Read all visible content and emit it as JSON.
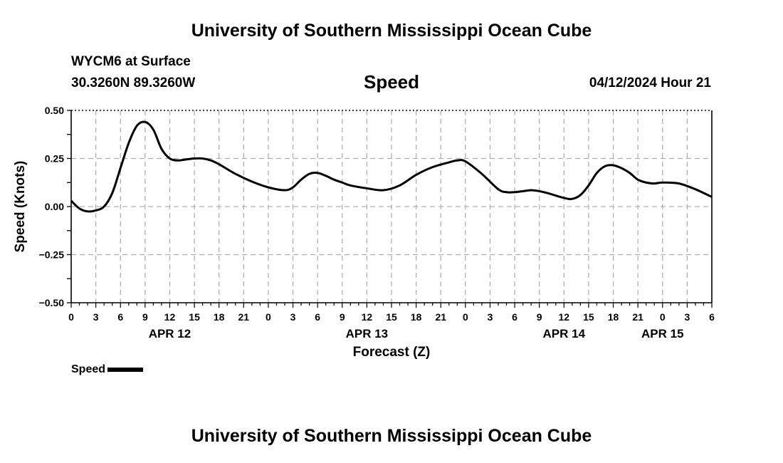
{
  "page": {
    "title_top": "University of Southern Mississippi Ocean Cube",
    "title_bottom": "University of Southern Mississippi Ocean Cube",
    "station": "WYCM6 at Surface",
    "coords": "30.3260N  89.3260W",
    "datetime": "04/12/2024 Hour 21"
  },
  "legend": {
    "label": "Speed",
    "color": "#000000"
  },
  "chart_data": {
    "type": "line",
    "title": "Speed",
    "xlabel": "Forecast (Z)",
    "ylabel": "Speed (Knots)",
    "xlim": [
      0,
      78
    ],
    "ylim": [
      -0.5,
      0.5
    ],
    "grid": true,
    "yticks": [
      "0.50",
      "0.25",
      "0.00",
      "−0.25",
      "−0.50"
    ],
    "ytick_values": [
      0.5,
      0.25,
      0.0,
      -0.25,
      -0.5
    ],
    "xtick_labels": [
      "0",
      "3",
      "6",
      "9",
      "12",
      "15",
      "18",
      "21",
      "0",
      "3",
      "6",
      "9",
      "12",
      "15",
      "18",
      "21",
      "0",
      "3",
      "6",
      "9",
      "12",
      "15",
      "18",
      "21",
      "0",
      "3",
      "6"
    ],
    "date_labels": [
      {
        "label": "APR 12",
        "hour": 12
      },
      {
        "label": "APR 13",
        "hour": 36
      },
      {
        "label": "APR 14",
        "hour": 60
      },
      {
        "label": "APR 15",
        "hour": 72
      }
    ],
    "series": [
      {
        "name": "Speed",
        "color": "#000000",
        "x": [
          0,
          1,
          2,
          3,
          4,
          5,
          6,
          7,
          8,
          9,
          10,
          11,
          12,
          13,
          14,
          15,
          16,
          17,
          18,
          20,
          22,
          24,
          26,
          27,
          28,
          29,
          30,
          31,
          32,
          33,
          34,
          36,
          38,
          40,
          42,
          44,
          46,
          47,
          48,
          50,
          52,
          53,
          54,
          55,
          56,
          57,
          58,
          60,
          61,
          62,
          63,
          64,
          65,
          66,
          67,
          68,
          69,
          70,
          71,
          72,
          74,
          76,
          78
        ],
        "values": [
          0.03,
          -0.01,
          -0.025,
          -0.02,
          0.0,
          0.07,
          0.2,
          0.33,
          0.42,
          0.44,
          0.4,
          0.3,
          0.25,
          0.24,
          0.245,
          0.25,
          0.25,
          0.24,
          0.22,
          0.17,
          0.13,
          0.1,
          0.085,
          0.1,
          0.14,
          0.17,
          0.175,
          0.16,
          0.14,
          0.125,
          0.11,
          0.095,
          0.085,
          0.11,
          0.165,
          0.205,
          0.23,
          0.24,
          0.235,
          0.17,
          0.09,
          0.075,
          0.075,
          0.08,
          0.085,
          0.08,
          0.07,
          0.045,
          0.04,
          0.06,
          0.11,
          0.175,
          0.21,
          0.215,
          0.2,
          0.175,
          0.14,
          0.125,
          0.12,
          0.125,
          0.12,
          0.09,
          0.05
        ]
      }
    ]
  }
}
